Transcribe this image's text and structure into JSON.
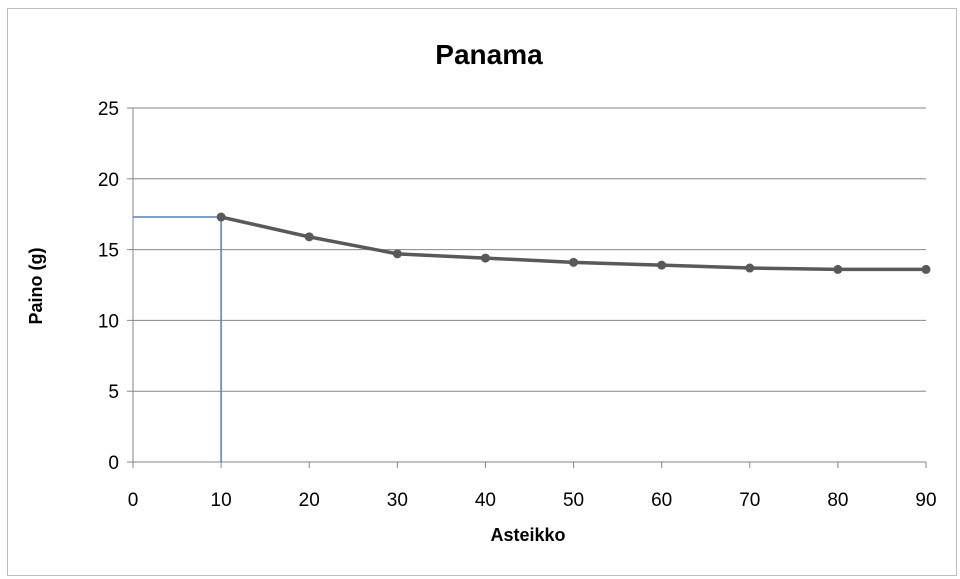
{
  "chart_data": {
    "type": "line",
    "title": "Panama",
    "xlabel": "Asteikko",
    "ylabel": "Paino (g)",
    "x": [
      10,
      20,
      30,
      40,
      50,
      60,
      70,
      80,
      90
    ],
    "series": [
      {
        "values": [
          17.3,
          15.9,
          14.7,
          14.4,
          14.1,
          13.9,
          13.7,
          13.6,
          13.6
        ]
      }
    ],
    "xlim": [
      0,
      90
    ],
    "ylim": [
      0,
      25
    ],
    "x_ticks": [
      0,
      10,
      20,
      30,
      40,
      50,
      60,
      70,
      80,
      90
    ],
    "y_ticks": [
      0,
      5,
      10,
      15,
      20,
      25
    ],
    "grid": "horizontal",
    "legend": "none",
    "reference_point": {
      "x": 10,
      "y": 17.3
    },
    "colors": {
      "series": "#595959",
      "reference": "#4f81bd",
      "grid": "#868686",
      "axis": "#868686"
    }
  }
}
